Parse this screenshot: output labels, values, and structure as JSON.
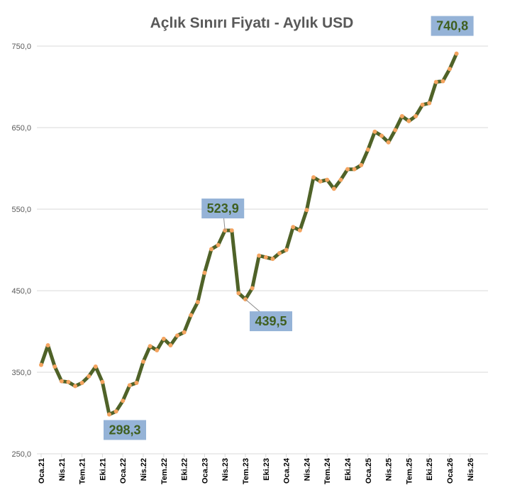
{
  "chart_data": {
    "type": "line",
    "title": "Açlık Sınırı Fiyatı - Aylık USD",
    "xlabel": "",
    "ylabel": "",
    "ylim": [
      250,
      750
    ],
    "yticks": [
      "250,0",
      "350,0",
      "450,0",
      "550,0",
      "650,0",
      "750,0"
    ],
    "ytick_values": [
      250,
      350,
      450,
      550,
      650,
      750
    ],
    "xtick_labels": [
      "Oca.21",
      "Nis.21",
      "Tem.21",
      "Eki.21",
      "Oca.22",
      "Nis.22",
      "Tem.22",
      "Eki.22",
      "Oca.23",
      "Nis.23",
      "Tem.23",
      "Eki.23",
      "Oca.24",
      "Nis.24",
      "Tem.24",
      "Eki.24",
      "Oca.25",
      "Nis.25",
      "Tem.25",
      "Eki.25",
      "Oca.26",
      "Nis.26"
    ],
    "grid": true,
    "legend": "none",
    "line_color": "#4f6228",
    "marker_color": "#f4a460",
    "label_box_color": "#95b3d7",
    "series": [
      {
        "values": [
          359,
          383,
          357,
          339,
          338,
          333,
          337,
          345,
          357,
          338,
          298.3,
          302,
          315,
          334,
          337,
          363,
          382,
          377,
          391,
          383,
          395,
          399,
          420,
          436,
          472,
          501,
          506,
          523.9,
          523.9,
          447,
          439.5,
          453,
          493,
          491,
          489,
          496,
          500,
          528,
          524,
          549,
          589,
          584,
          586,
          575,
          586,
          599,
          599,
          604,
          623,
          645,
          640,
          632,
          647,
          664,
          658,
          664,
          678,
          680,
          706,
          707,
          722,
          740.8
        ]
      }
    ],
    "data_labels": [
      {
        "index": 10,
        "text": "298,3"
      },
      {
        "index": 27,
        "text": "523,9"
      },
      {
        "index": 30,
        "text": "439,5"
      },
      {
        "index": 61,
        "text": "740,8"
      }
    ]
  }
}
